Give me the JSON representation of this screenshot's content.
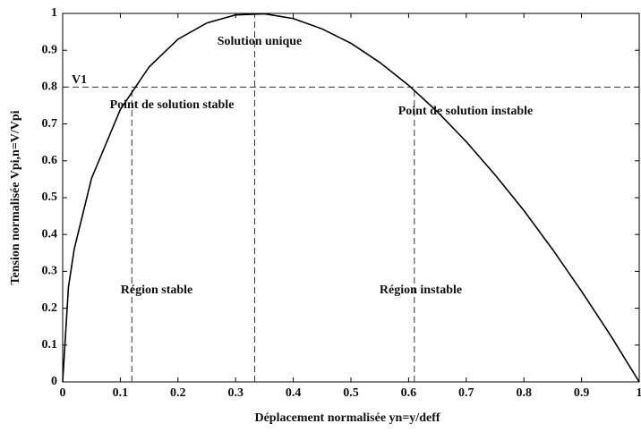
{
  "chart_data": {
    "type": "line",
    "x_label": "Déplacement normalisée yn=y/deff",
    "y_label": "Tension normalisée Vpi,n=V/Vpi",
    "x": [
      0,
      0.01,
      0.02,
      0.05,
      0.1,
      0.15,
      0.2,
      0.25,
      0.3,
      0.35,
      0.4,
      0.45,
      0.5,
      0.55,
      0.6,
      0.65,
      0.7,
      0.75,
      0.8,
      0.85,
      0.9,
      0.95,
      1
    ],
    "values": [
      0,
      0.257,
      0.36,
      0.552,
      0.739,
      0.855,
      0.93,
      0.974,
      0.996,
      0.999,
      0.986,
      0.958,
      0.919,
      0.867,
      0.805,
      0.733,
      0.652,
      0.562,
      0.465,
      0.359,
      0.246,
      0.127,
      0
    ],
    "color": "#000000",
    "xlim": [
      0,
      1
    ],
    "ylim": [
      0,
      1
    ],
    "xticks": [
      0,
      0.1,
      0.2,
      0.3,
      0.4,
      0.5,
      0.6,
      0.7,
      0.8,
      0.9,
      1
    ],
    "yticks": [
      0,
      0.1,
      0.2,
      0.3,
      0.4,
      0.5,
      0.6,
      0.7,
      0.8,
      0.9,
      1
    ],
    "hlines": [
      0.8
    ],
    "vlines": [
      {
        "x": 0.12,
        "top": 0.8
      },
      {
        "x": 0.333,
        "top": 1
      },
      {
        "x": 0.61,
        "top": 0.8
      }
    ],
    "annotations": [
      "V1",
      "Solution unique",
      "Point de solution stable",
      "Point de solution instable",
      "Région stable",
      "Région instable"
    ]
  }
}
